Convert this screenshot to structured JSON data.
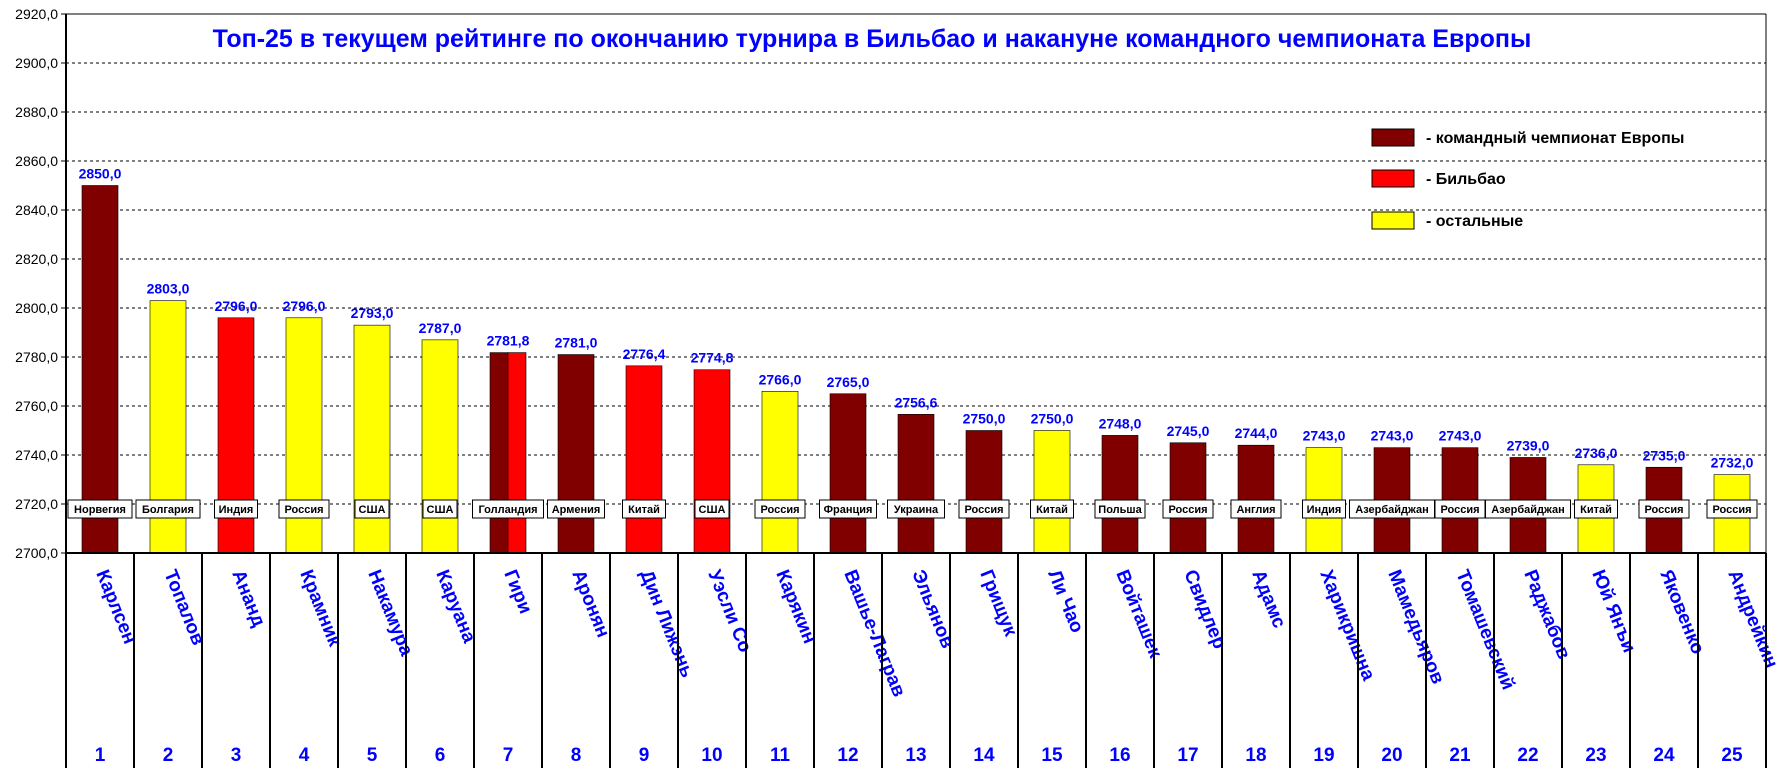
{
  "chart_data": {
    "type": "bar",
    "title": "Топ-25 в текущем рейтинге по окончанию турнира в Бильбао и накануне командного чемпионата Европы",
    "ylim": [
      2700,
      2920
    ],
    "yticks": [
      "2700,0",
      "2720,0",
      "2740,0",
      "2760,0",
      "2780,0",
      "2800,0",
      "2820,0",
      "2840,0",
      "2860,0",
      "2880,0",
      "2900,0",
      "2920,0"
    ],
    "grid": true,
    "legend_position": "top-right",
    "legend": [
      {
        "label": "- командный чемпионат Европы",
        "color": "#800000"
      },
      {
        "label": "- Бильбао",
        "color": "#ff0000"
      },
      {
        "label": "- остальные",
        "color": "#ffff00"
      }
    ],
    "bars": [
      {
        "rank": "1",
        "name": "Карлсен",
        "country": "Норвегия",
        "value": 2850.0,
        "label": "2850,0",
        "group": "euro"
      },
      {
        "rank": "2",
        "name": "Топалов",
        "country": "Болгария",
        "value": 2803.0,
        "label": "2803,0",
        "group": "other"
      },
      {
        "rank": "3",
        "name": "Ананд",
        "country": "Индия",
        "value": 2796.0,
        "label": "2796,0",
        "group": "bilbao"
      },
      {
        "rank": "4",
        "name": "Крамник",
        "country": "Россия",
        "value": 2796.0,
        "label": "2796,0",
        "group": "other"
      },
      {
        "rank": "5",
        "name": "Накамура",
        "country": "США",
        "value": 2793.0,
        "label": "2793,0",
        "group": "other"
      },
      {
        "rank": "6",
        "name": "Каруана",
        "country": "США",
        "value": 2787.0,
        "label": "2787,0",
        "group": "other"
      },
      {
        "rank": "7",
        "name": "Гири",
        "country": "Голландия",
        "value": 2781.8,
        "label": "2781,8",
        "group": "euro+bilbao"
      },
      {
        "rank": "8",
        "name": "Аронян",
        "country": "Армения",
        "value": 2781.0,
        "label": "2781,0",
        "group": "euro"
      },
      {
        "rank": "9",
        "name": "Дин Лижэнь",
        "country": "Китай",
        "value": 2776.4,
        "label": "2776,4",
        "group": "bilbao"
      },
      {
        "rank": "10",
        "name": "Уэсли Со",
        "country": "США",
        "value": 2774.8,
        "label": "2774,8",
        "group": "bilbao"
      },
      {
        "rank": "11",
        "name": "Карякин",
        "country": "Россия",
        "value": 2766.0,
        "label": "2766,0",
        "group": "other"
      },
      {
        "rank": "12",
        "name": "Вашье-Лаграв",
        "country": "Франция",
        "value": 2765.0,
        "label": "2765,0",
        "group": "euro"
      },
      {
        "rank": "13",
        "name": "Эльянов",
        "country": "Украина",
        "value": 2756.6,
        "label": "2756,6",
        "group": "euro"
      },
      {
        "rank": "14",
        "name": "Грищук",
        "country": "Россия",
        "value": 2750.0,
        "label": "2750,0",
        "group": "euro"
      },
      {
        "rank": "15",
        "name": "Ли Чао",
        "country": "Китай",
        "value": 2750.0,
        "label": "2750,0",
        "group": "other"
      },
      {
        "rank": "16",
        "name": "Войташек",
        "country": "Польша",
        "value": 2748.0,
        "label": "2748,0",
        "group": "euro"
      },
      {
        "rank": "17",
        "name": "Свидлер",
        "country": "Россия",
        "value": 2745.0,
        "label": "2745,0",
        "group": "euro"
      },
      {
        "rank": "18",
        "name": "Адамс",
        "country": "Англия",
        "value": 2744.0,
        "label": "2744,0",
        "group": "euro"
      },
      {
        "rank": "19",
        "name": "Харикришна",
        "country": "Индия",
        "value": 2743.0,
        "label": "2743,0",
        "group": "other"
      },
      {
        "rank": "20",
        "name": "Мамедьяров",
        "country": "Азербайджан",
        "value": 2743.0,
        "label": "2743,0",
        "group": "euro"
      },
      {
        "rank": "21",
        "name": "Томашевский",
        "country": "Россия",
        "value": 2743.0,
        "label": "2743,0",
        "group": "euro"
      },
      {
        "rank": "22",
        "name": "Раджабов",
        "country": "Азербайджан",
        "value": 2739.0,
        "label": "2739,0",
        "group": "euro"
      },
      {
        "rank": "23",
        "name": "Юй Янъи",
        "country": "Китай",
        "value": 2736.0,
        "label": "2736,0",
        "group": "other"
      },
      {
        "rank": "24",
        "name": "Яковенко",
        "country": "Россия",
        "value": 2735.0,
        "label": "2735,0",
        "group": "euro"
      },
      {
        "rank": "25",
        "name": "Андрейкин",
        "country": "Россия",
        "value": 2732.0,
        "label": "2732,0",
        "group": "other"
      }
    ]
  }
}
